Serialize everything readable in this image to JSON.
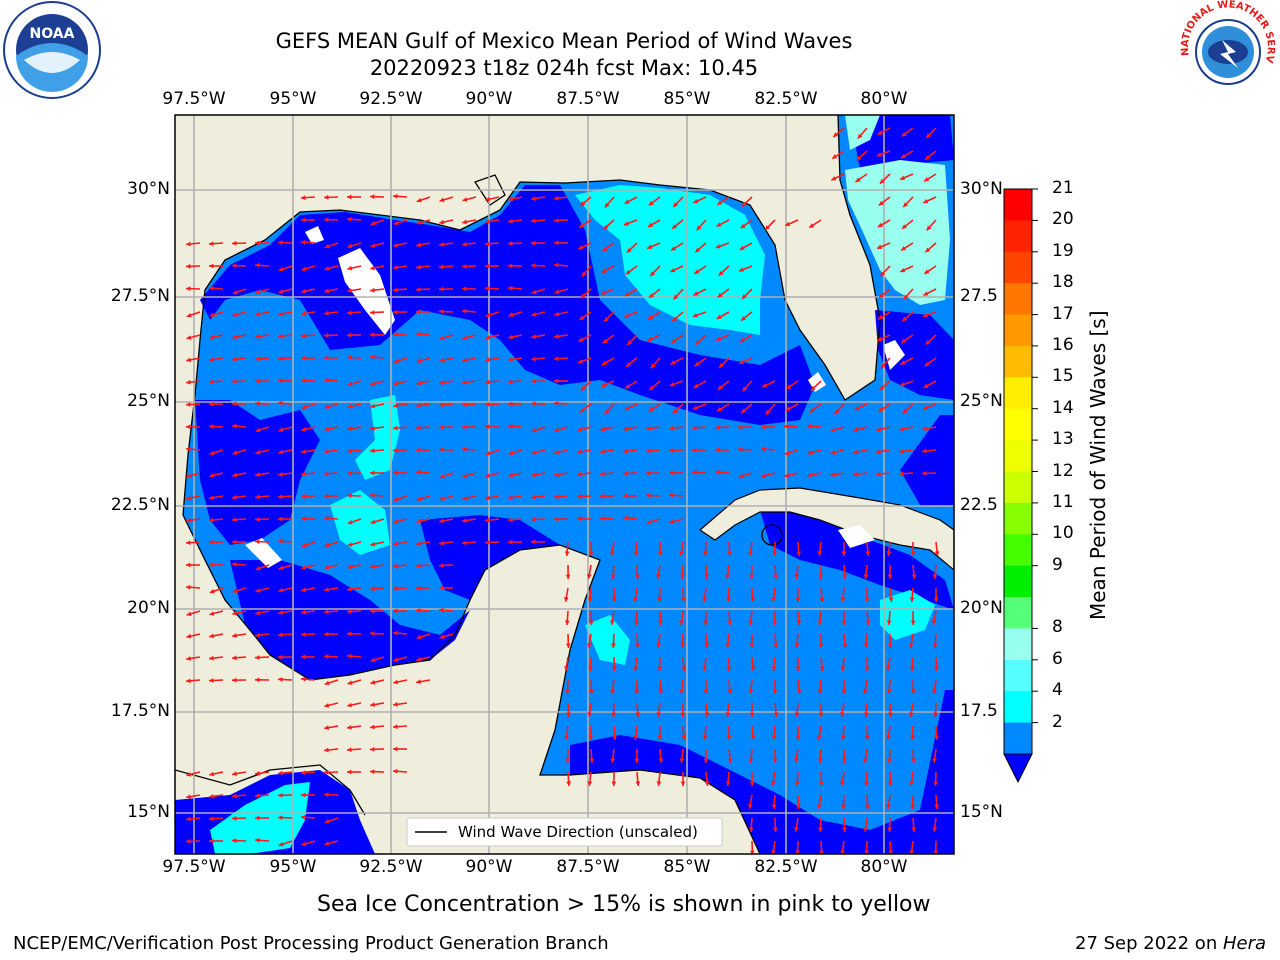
{
  "title": {
    "line1": "GEFS MEAN Gulf of Mexico Mean Period of Wind Waves",
    "line2": "20220923 t18z 024h fcst   Max: 10.45"
  },
  "map": {
    "lon_ticks": [
      "97.5°W",
      "95°W",
      "92.5°W",
      "90°W",
      "87.5°W",
      "85°W",
      "82.5°W",
      "80°W"
    ],
    "lat_ticks_left": [
      "30°N",
      "27.5°N",
      "25°N",
      "22.5°N",
      "20°N",
      "17.5°N",
      "15°N"
    ],
    "lat_ticks_right": [
      "30°N",
      "27.5",
      "25°N",
      "22.5",
      "20°N",
      "17.5",
      "15°N"
    ],
    "legend_label": "Wind Wave Direction (unscaled)"
  },
  "colorbar": {
    "label": "Mean Period of Wind Waves [s]",
    "ticks": [
      "21",
      "20",
      "19",
      "18",
      "17",
      "16",
      "15",
      "14",
      "13",
      "12",
      "11",
      "10",
      "9",
      "8",
      "6",
      "4",
      "2"
    ],
    "colors": [
      "#ff0000",
      "#ff2200",
      "#ff4400",
      "#ff7700",
      "#ff9900",
      "#ffbb00",
      "#ffee00",
      "#ffff00",
      "#eeff00",
      "#ccff00",
      "#88ff00",
      "#44ff00",
      "#00ee00",
      "#55ff77",
      "#99ffee",
      "#55ffff",
      "#00ffff",
      "#0088ff"
    ],
    "under_color": "#0000ff"
  },
  "logos": {
    "noaa_text": "NOAA",
    "nws_text": "NATIONAL WEATHER SERVICE"
  },
  "caption": "Sea Ice Concentration > 15% is shown in pink to yellow",
  "footer": {
    "left": "NCEP/EMC/Verification Post Processing Product Generation Branch",
    "right_prefix": "27 Sep 2022 on ",
    "right_host": "Hera"
  }
}
